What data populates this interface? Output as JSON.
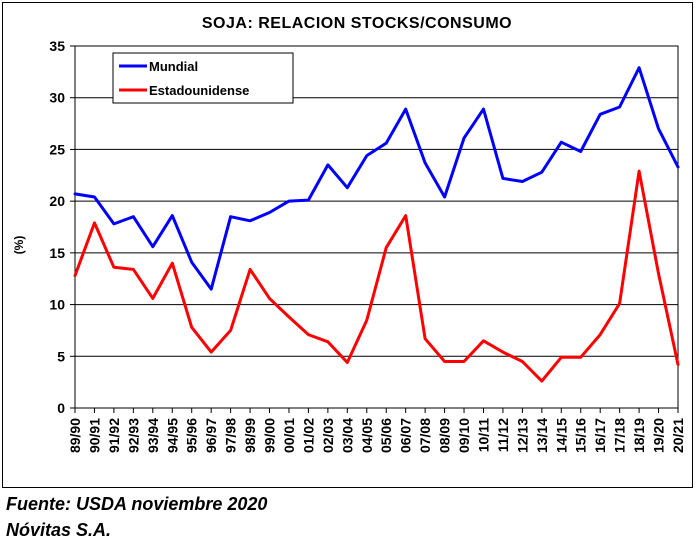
{
  "chart_data": {
    "type": "line",
    "title": "SOJA: RELACION STOCKS/CONSUMO",
    "ylabel": "(%)",
    "xlabel": "",
    "ylim": [
      0,
      35
    ],
    "yticks": [
      0,
      5,
      10,
      15,
      20,
      25,
      30,
      35
    ],
    "grid": true,
    "legend_position": "top-left",
    "categories": [
      "89/90",
      "90/91",
      "91/92",
      "92/93",
      "93/94",
      "94/95",
      "95/96",
      "96/97",
      "97/98",
      "98/99",
      "99/00",
      "00/01",
      "01/02",
      "02/03",
      "03/04",
      "04/05",
      "05/06",
      "06/07",
      "07/08",
      "08/09",
      "09/10",
      "10/11",
      "11/12",
      "12/13",
      "13/14",
      "14/15",
      "15/16",
      "16/17",
      "17/18",
      "18/19",
      "19/20",
      "20/21"
    ],
    "series": [
      {
        "name": "Mundial",
        "color": "#0000ff",
        "values": [
          20.7,
          20.4,
          17.8,
          18.5,
          15.6,
          18.6,
          14.1,
          11.5,
          18.5,
          18.1,
          18.9,
          20.0,
          20.1,
          23.5,
          21.3,
          24.4,
          25.6,
          28.9,
          23.7,
          20.4,
          26.1,
          28.9,
          22.2,
          21.9,
          22.8,
          25.7,
          24.8,
          28.4,
          29.1,
          32.9,
          27.0,
          23.3
        ]
      },
      {
        "name": "Estadounidense",
        "color": "#ff0000",
        "values": [
          12.8,
          17.9,
          13.6,
          13.4,
          10.6,
          14.0,
          7.8,
          5.4,
          7.5,
          13.4,
          10.6,
          8.8,
          7.1,
          6.4,
          4.4,
          8.5,
          15.5,
          18.6,
          6.7,
          4.5,
          4.5,
          6.5,
          5.4,
          4.5,
          2.6,
          4.9,
          4.9,
          7.1,
          10.1,
          22.9,
          13.0,
          4.2
        ]
      }
    ]
  },
  "footer": {
    "source": "Fuente: USDA noviembre 2020",
    "company": "Nóvitas S.A."
  }
}
